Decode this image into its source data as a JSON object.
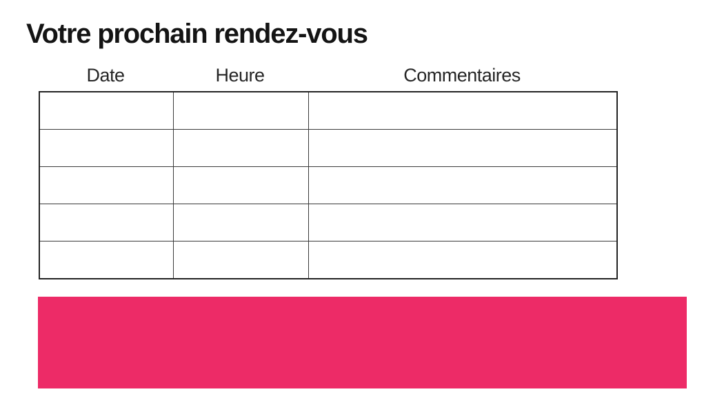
{
  "header": {
    "title": "Votre prochain rendez-vous"
  },
  "table": {
    "columns": [
      {
        "label": "Date"
      },
      {
        "label": "Heure"
      },
      {
        "label": "Commentaires"
      }
    ],
    "rows": [
      [
        "",
        "",
        ""
      ],
      [
        "",
        "",
        ""
      ],
      [
        "",
        "",
        ""
      ],
      [
        "",
        "",
        ""
      ],
      [
        "",
        "",
        ""
      ]
    ]
  },
  "banner": {
    "color": "#ED2B67"
  }
}
